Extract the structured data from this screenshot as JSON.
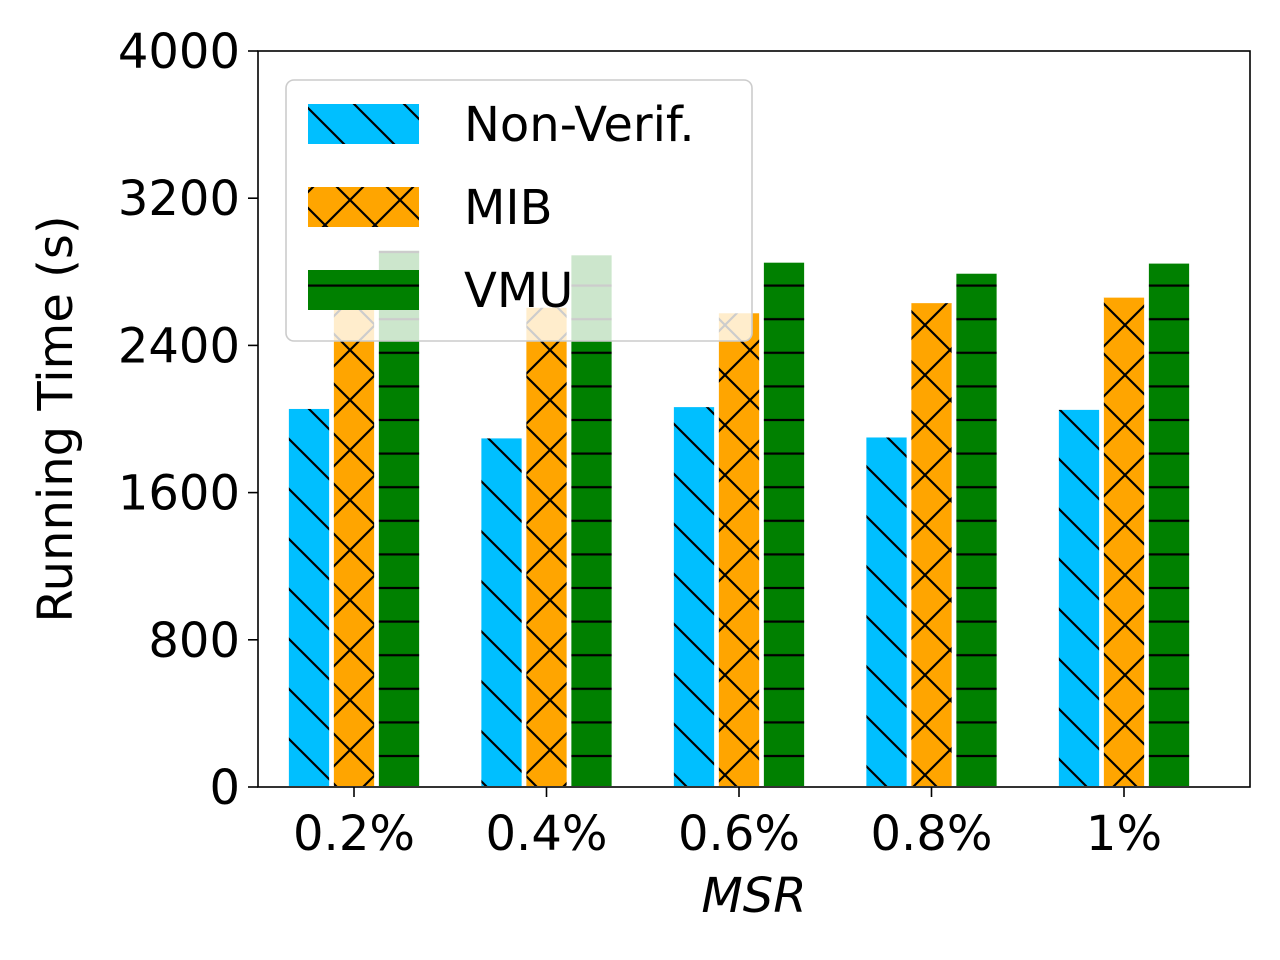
{
  "chart_data": {
    "type": "bar",
    "categories": [
      "0.2%",
      "0.4%",
      "0.6%",
      "0.8%",
      "1%"
    ],
    "xlabel": "MSR",
    "ylabel": "Running Time (s)",
    "ylim": [
      0,
      4000
    ],
    "yticks": [
      "0",
      "800",
      "1600",
      "2400",
      "3200",
      "4000"
    ],
    "legend_position": "upper-left",
    "grid": false,
    "series": [
      {
        "name": "Non-Verif.",
        "color": "#00bfff",
        "hatch": "diagonal",
        "values": [
          2060,
          1900,
          2070,
          1905,
          2055
        ]
      },
      {
        "name": "MIB",
        "color": "#ffa500",
        "hatch": "cross",
        "values": [
          2600,
          2610,
          2580,
          2635,
          2665
        ]
      },
      {
        "name": "VMU",
        "color": "#008000",
        "hatch": "horizontal",
        "values": [
          2920,
          2895,
          2855,
          2795,
          2850
        ]
      }
    ]
  }
}
